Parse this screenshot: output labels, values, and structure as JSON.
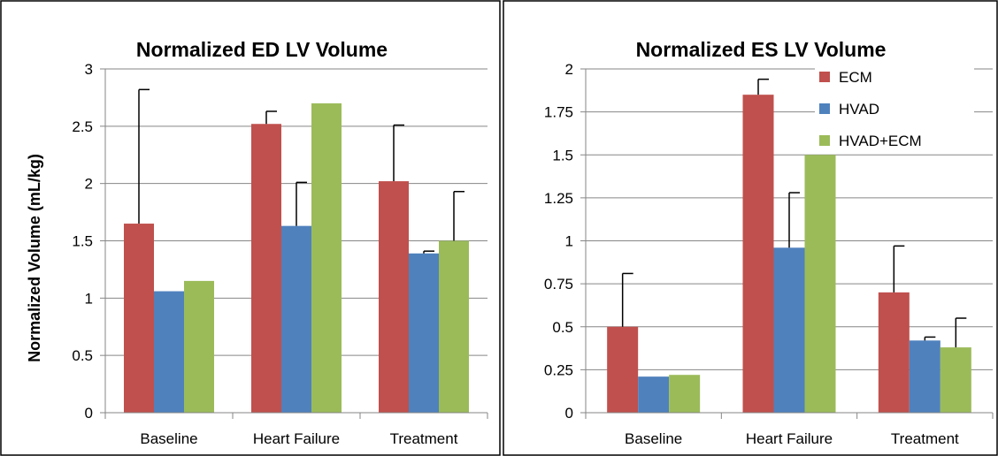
{
  "chart_data": [
    {
      "type": "bar",
      "title": "Normalized ED LV Volume",
      "ylabel": "Normalized Volume (mL/kg)",
      "xlabel": "",
      "categories": [
        "Baseline",
        "Heart Failure",
        "Treatment"
      ],
      "ylim": [
        0,
        3
      ],
      "yticks": [
        0,
        0.5,
        1,
        1.5,
        2,
        2.5,
        3
      ],
      "ytick_labels": [
        "0",
        "0.5",
        "1",
        "1.5",
        "2",
        "2.5",
        "3"
      ],
      "grid": true,
      "series": [
        {
          "name": "ECM",
          "color": "#C0504D",
          "values": [
            1.65,
            2.52,
            2.02
          ],
          "error": [
            1.17,
            0.11,
            0.49
          ]
        },
        {
          "name": "HVAD",
          "color": "#4F81BD",
          "values": [
            1.06,
            1.63,
            1.39
          ],
          "error": [
            0,
            0.38,
            0.02
          ]
        },
        {
          "name": "HVAD+ECM",
          "color": "#9BBB59",
          "values": [
            1.15,
            2.7,
            1.5
          ],
          "error": [
            0,
            0,
            0.43
          ]
        }
      ]
    },
    {
      "type": "bar",
      "title": "Normalized ES LV Volume",
      "ylabel": "",
      "xlabel": "",
      "categories": [
        "Baseline",
        "Heart Failure",
        "Treatment"
      ],
      "ylim": [
        0,
        2
      ],
      "yticks": [
        0,
        0.25,
        0.5,
        0.75,
        1,
        1.25,
        1.5,
        1.75,
        2
      ],
      "ytick_labels": [
        "0",
        "0.25",
        "0.5",
        "0.75",
        "1",
        "1.25",
        "1.5",
        "1.75",
        "2"
      ],
      "grid": true,
      "legend": "top-right",
      "legend_labels": [
        "ECM",
        "HVAD",
        "HVAD+ECM"
      ],
      "series": [
        {
          "name": "ECM",
          "color": "#C0504D",
          "values": [
            0.5,
            1.85,
            0.7
          ],
          "error": [
            0.31,
            0.09,
            0.27
          ]
        },
        {
          "name": "HVAD",
          "color": "#4F81BD",
          "values": [
            0.21,
            0.96,
            0.42
          ],
          "error": [
            0,
            0.32,
            0.02
          ]
        },
        {
          "name": "HVAD+ECM",
          "color": "#9BBB59",
          "values": [
            0.22,
            1.5,
            0.38
          ],
          "error": [
            0,
            0,
            0.17
          ]
        }
      ]
    }
  ]
}
